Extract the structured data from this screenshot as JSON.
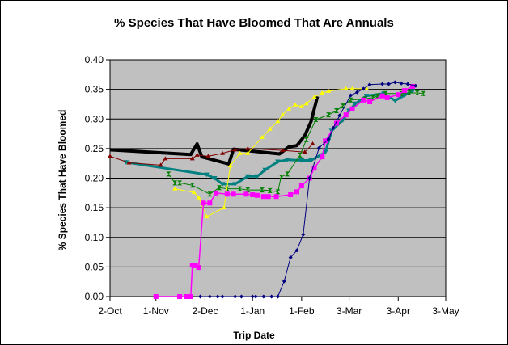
{
  "chart_data": {
    "type": "line",
    "title": "% Species That Have Bloomed That Are Annuals",
    "xlabel": "Trip Date",
    "ylabel": "% Species That Have Bloomed",
    "ylim": [
      0,
      0.4
    ],
    "y_ticks": [
      "0.00",
      "0.05",
      "0.10",
      "0.15",
      "0.20",
      "0.25",
      "0.30",
      "0.35",
      "0.40"
    ],
    "x_ticks": [
      "2-Oct",
      "1-Nov",
      "2-Dec",
      "1-Jan",
      "1-Feb",
      "3-Mar",
      "3-Apr",
      "3-May"
    ],
    "xlim": [
      "Oct 2",
      "May 3"
    ],
    "grid": "horizontal major",
    "legend": "none",
    "plot_background": "#c0c0c0",
    "series": [
      {
        "color": "#000000",
        "width": 4,
        "marker": "none",
        "points": [
          [
            "Oct 2",
            0.248
          ],
          [
            "Nov 23",
            0.24
          ],
          [
            "Nov 27",
            0.258
          ],
          [
            "Nov 30",
            0.236
          ],
          [
            "Dec 17",
            0.224
          ],
          [
            "Dec 20",
            0.249
          ],
          [
            "Jan 18",
            0.241
          ],
          [
            "Jan 24",
            0.253
          ],
          [
            "Jan 29",
            0.255
          ],
          [
            "Feb 3",
            0.272
          ],
          [
            "Feb 7",
            0.296
          ],
          [
            "Feb 11",
            0.338
          ]
        ]
      },
      {
        "color": "#008080",
        "width": 3,
        "marker": "triangle-down",
        "points": [
          [
            "Oct 12",
            0.227
          ],
          [
            "Dec 3",
            0.206
          ],
          [
            "Dec 8",
            0.2
          ],
          [
            "Dec 13",
            0.19
          ],
          [
            "Dec 21",
            0.19
          ],
          [
            "Dec 29",
            0.203
          ],
          [
            "Jan 4",
            0.203
          ],
          [
            "Jan 9",
            0.214
          ],
          [
            "Jan 17",
            0.228
          ],
          [
            "Jan 23",
            0.231
          ],
          [
            "Feb 1",
            0.23
          ],
          [
            "Feb 7",
            0.23
          ],
          [
            "Feb 16",
            0.244
          ],
          [
            "Feb 20",
            0.28
          ],
          [
            "Feb 27",
            0.298
          ],
          [
            "Mar 3",
            0.314
          ],
          [
            "Mar 7",
            0.326
          ],
          [
            "Mar 14",
            0.339
          ],
          [
            "Mar 25",
            0.343
          ],
          [
            "Apr 1",
            0.331
          ],
          [
            "Apr 7",
            0.34
          ],
          [
            "Apr 12",
            0.347
          ]
        ]
      },
      {
        "color": "#800000",
        "width": 1,
        "marker": "triangle",
        "points": [
          [
            "Oct 2",
            0.237
          ],
          [
            "Oct 14",
            0.226
          ],
          [
            "Nov 4",
            0.222
          ],
          [
            "Nov 7",
            0.233
          ],
          [
            "Nov 24",
            0.233
          ],
          [
            "Nov 27",
            0.239
          ],
          [
            "Dec 4",
            0.237
          ],
          [
            "Dec 13",
            0.242
          ],
          [
            "Dec 21",
            0.248
          ],
          [
            "Dec 29",
            0.25
          ],
          [
            "Jan 20",
            0.247
          ],
          [
            "Feb 3",
            0.244
          ],
          [
            "Feb 8",
            0.258
          ]
        ]
      },
      {
        "color": "#008000",
        "width": 1,
        "marker": "hourglass",
        "points": [
          [
            "Nov 9",
            0.207
          ],
          [
            "Nov 13",
            0.192
          ],
          [
            "Nov 16",
            0.192
          ],
          [
            "Nov 24",
            0.188
          ],
          [
            "Dec 5",
            0.173
          ],
          [
            "Dec 11",
            0.184
          ],
          [
            "Dec 16",
            0.182
          ],
          [
            "Dec 24",
            0.182
          ],
          [
            "Dec 29",
            0.18
          ],
          [
            "Jan 7",
            0.18
          ],
          [
            "Jan 12",
            0.179
          ],
          [
            "Jan 17",
            0.177
          ],
          [
            "Jan 19",
            0.202
          ],
          [
            "Jan 23",
            0.207
          ],
          [
            "Jan 31",
            0.239
          ],
          [
            "Feb 4",
            0.265
          ],
          [
            "Feb 10",
            0.299
          ],
          [
            "Feb 18",
            0.307
          ],
          [
            "Feb 23",
            0.314
          ],
          [
            "Feb 27",
            0.322
          ],
          [
            "Mar 4",
            0.332
          ],
          [
            "Mar 13",
            0.334
          ],
          [
            "Mar 18",
            0.336
          ],
          [
            "Mar 21",
            0.339
          ],
          [
            "Mar 26",
            0.343
          ],
          [
            "Apr 5",
            0.343
          ],
          [
            "Apr 10",
            0.344
          ],
          [
            "Apr 15",
            0.344
          ],
          [
            "Apr 19",
            0.343
          ]
        ]
      },
      {
        "color": "#ffff00",
        "width": 1,
        "marker": "triangle",
        "points": [
          [
            "Nov 13",
            0.182
          ],
          [
            "Nov 25",
            0.176
          ],
          [
            "Nov 28",
            0.167
          ],
          [
            "Dec 3",
            0.135
          ],
          [
            "Dec 14",
            0.15
          ],
          [
            "Dec 18",
            0.221
          ],
          [
            "Dec 24",
            0.242
          ],
          [
            "Dec 29",
            0.242
          ],
          [
            "Jan 7",
            0.269
          ],
          [
            "Jan 12",
            0.283
          ],
          [
            "Jan 17",
            0.296
          ],
          [
            "Jan 20",
            0.307
          ],
          [
            "Jan 24",
            0.317
          ],
          [
            "Jan 28",
            0.324
          ],
          [
            "Feb 1",
            0.321
          ],
          [
            "Feb 4",
            0.326
          ],
          [
            "Feb 9",
            0.337
          ],
          [
            "Feb 14",
            0.344
          ],
          [
            "Feb 18",
            0.347
          ],
          [
            "Mar 1",
            0.351
          ],
          [
            "Mar 5",
            0.351
          ],
          [
            "Mar 14",
            0.351
          ]
        ]
      },
      {
        "color": "#ff00ff",
        "width": 1.5,
        "marker": "square",
        "points": [
          [
            "Oct 31",
            0
          ],
          [
            "Nov 16",
            0
          ],
          [
            "Nov 20",
            0
          ],
          [
            "Nov 23",
            0
          ],
          [
            "Nov 24",
            0.053
          ],
          [
            "Nov 26",
            0.052
          ],
          [
            "Nov 28",
            0.049
          ],
          [
            "Dec 1",
            0.158
          ],
          [
            "Dec 5",
            0.158
          ],
          [
            "Dec 9",
            0.175
          ],
          [
            "Dec 16",
            0.173
          ],
          [
            "Dec 20",
            0.173
          ],
          [
            "Dec 28",
            0.173
          ],
          [
            "Jan 1",
            0.172
          ],
          [
            "Jan 4",
            0.171
          ],
          [
            "Jan 8",
            0.169
          ],
          [
            "Jan 11",
            0.169
          ],
          [
            "Jan 16",
            0.169
          ],
          [
            "Jan 25",
            0.172
          ],
          [
            "Jan 29",
            0.177
          ],
          [
            "Feb 1",
            0.187
          ],
          [
            "Feb 6",
            0.2
          ],
          [
            "Feb 9",
            0.217
          ],
          [
            "Feb 14",
            0.236
          ],
          [
            "Feb 16",
            0.263
          ],
          [
            "Feb 23",
            0.293
          ],
          [
            "Mar 1",
            0.307
          ],
          [
            "Mar 5",
            0.317
          ],
          [
            "Mar 12",
            0.332
          ],
          [
            "Mar 16",
            0.329
          ],
          [
            "Mar 24",
            0.339
          ],
          [
            "Mar 27",
            0.336
          ],
          [
            "Apr 3",
            0.341
          ],
          [
            "Apr 7",
            0.348
          ],
          [
            "Apr 12",
            0.355
          ]
        ]
      },
      {
        "color": "#000080",
        "width": 1,
        "marker": "diamond",
        "points": [
          [
            "Nov 29",
            0
          ],
          [
            "Dec 5",
            0
          ],
          [
            "Dec 10",
            0
          ],
          [
            "Dec 13",
            0
          ],
          [
            "Dec 21",
            0
          ],
          [
            "Dec 25",
            0
          ],
          [
            "Jan 1",
            0
          ],
          [
            "Jan 3",
            0
          ],
          [
            "Jan 8",
            0
          ],
          [
            "Jan 13",
            0
          ],
          [
            "Jan 17",
            0
          ],
          [
            "Jan 21",
            0.026
          ],
          [
            "Jan 25",
            0.066
          ],
          [
            "Jan 29",
            0.078
          ],
          [
            "Feb 2",
            0.105
          ],
          [
            "Feb 6",
            0.2
          ],
          [
            "Feb 12",
            0.251
          ],
          [
            "Feb 18",
            0.266
          ],
          [
            "Feb 21",
            0.285
          ],
          [
            "Feb 25",
            0.306
          ],
          [
            "Mar 4",
            0.34
          ],
          [
            "Mar 8",
            0.345
          ],
          [
            "Mar 12",
            0.351
          ],
          [
            "Mar 16",
            0.358
          ],
          [
            "Mar 24",
            0.359
          ],
          [
            "Mar 28",
            0.359
          ],
          [
            "Apr 1",
            0.362
          ],
          [
            "Apr 5",
            0.36
          ],
          [
            "Apr 9",
            0.359
          ],
          [
            "Apr 14",
            0.356
          ]
        ]
      }
    ]
  }
}
